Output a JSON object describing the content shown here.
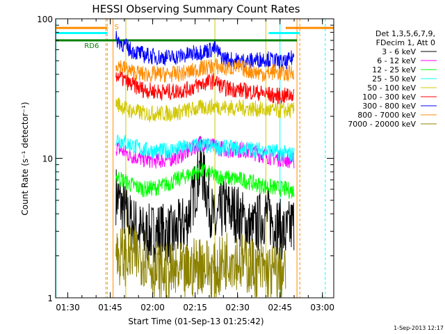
{
  "chart_data": {
    "type": "line",
    "title": "HESSI Observing Summary Count Rates",
    "xlabel": "Start Time (01-Sep-13 01:25:42)",
    "ylabel": "Count Rate (s⁻¹ detector⁻¹)",
    "y_scale": "log",
    "ylim": [
      1,
      100
    ],
    "xlim": [
      "01:25:42",
      "03:04:00"
    ],
    "x_ticks": [
      "01:30",
      "01:45",
      "02:00",
      "02:15",
      "02:30",
      "02:45",
      "03:00"
    ],
    "y_ticks": [
      "1",
      "10",
      "100"
    ],
    "grid": false,
    "legend_position": "right",
    "legend_header": [
      "Det 1,3,5,6,7,9,",
      "FDecim 1, Att 0"
    ],
    "series": [
      {
        "name": "3 - 6 keV",
        "color": "#000000",
        "x": [
          "01:47",
          "01:52",
          "01:57",
          "02:02",
          "02:07",
          "02:12",
          "02:15",
          "02:17",
          "02:19",
          "02:22",
          "02:25",
          "02:30",
          "02:35",
          "02:40",
          "02:43",
          "02:47",
          "02:50"
        ],
        "y": [
          5.5,
          3.5,
          2.8,
          3.0,
          2.8,
          3.5,
          6,
          9,
          6,
          3.2,
          4.5,
          4.0,
          3.0,
          4.0,
          3.5,
          2.8,
          3.5
        ]
      },
      {
        "name": "6 - 12 keV",
        "color": "#ff00ff",
        "x": [
          "01:47",
          "01:52",
          "01:57",
          "02:02",
          "02:07",
          "02:12",
          "02:17",
          "02:22",
          "02:27",
          "02:32",
          "02:37",
          "02:42",
          "02:47",
          "02:50"
        ],
        "y": [
          12,
          10.5,
          9.8,
          9.6,
          10,
          11,
          13,
          12,
          11.5,
          11.5,
          10.8,
          10.2,
          9.8,
          9.6
        ]
      },
      {
        "name": "12 - 25 keV",
        "color": "#00ff00",
        "x": [
          "01:47",
          "01:52",
          "01:57",
          "02:02",
          "02:07",
          "02:12",
          "02:17",
          "02:22",
          "02:27",
          "02:32",
          "02:37",
          "02:42",
          "02:47",
          "02:50"
        ],
        "y": [
          7.5,
          6.5,
          6.0,
          6.2,
          6.8,
          7.5,
          8.2,
          7.5,
          7.2,
          7.0,
          6.5,
          6.2,
          6.0,
          5.8
        ]
      },
      {
        "name": "25 - 50 keV",
        "color": "#00ffff",
        "x": [
          "01:47",
          "01:52",
          "01:57",
          "02:02",
          "02:07",
          "02:12",
          "02:17",
          "02:22",
          "02:27",
          "02:32",
          "02:37",
          "02:42",
          "02:47",
          "02:50"
        ],
        "y": [
          14,
          12.5,
          11.5,
          11.2,
          11.5,
          12,
          12.5,
          12,
          11.8,
          11.8,
          11.5,
          11.2,
          10.8,
          10.6
        ]
      },
      {
        "name": "50 - 100 keV",
        "color": "#d2c800",
        "x": [
          "01:47",
          "01:52",
          "01:57",
          "02:02",
          "02:07",
          "02:12",
          "02:17",
          "02:22",
          "02:27",
          "02:32",
          "02:37",
          "02:42",
          "02:47",
          "02:50"
        ],
        "y": [
          25,
          22,
          21,
          21,
          21,
          22,
          23,
          23.5,
          23,
          23,
          22.5,
          22,
          22,
          22
        ]
      },
      {
        "name": "100 - 300 keV",
        "color": "#ff0000",
        "x": [
          "01:47",
          "01:52",
          "01:57",
          "02:02",
          "02:07",
          "02:12",
          "02:17",
          "02:22",
          "02:25",
          "02:30",
          "02:35",
          "02:40",
          "02:43",
          "02:47",
          "02:50"
        ],
        "y": [
          40,
          34,
          31,
          30,
          30,
          31,
          34,
          36,
          32,
          31,
          30,
          29,
          28,
          28,
          29
        ]
      },
      {
        "name": "300 - 800 keV",
        "color": "#0000ff",
        "x": [
          "01:47",
          "01:52",
          "01:57",
          "02:02",
          "02:07",
          "02:12",
          "02:17",
          "02:22",
          "02:25",
          "02:30",
          "02:35",
          "02:40",
          "02:43",
          "02:47",
          "02:50"
        ],
        "y": [
          72,
          60,
          55,
          53,
          53,
          55,
          58,
          61,
          52,
          50,
          50,
          52,
          50,
          48,
          54
        ]
      },
      {
        "name": "800 - 7000 keV",
        "color": "#ff8c00",
        "x": [
          "01:47",
          "01:52",
          "01:57",
          "02:02",
          "02:07",
          "02:12",
          "02:17",
          "02:22",
          "02:25",
          "02:30",
          "02:35",
          "02:40",
          "02:43",
          "02:47",
          "02:50"
        ],
        "y": [
          48,
          42,
          40,
          40,
          40,
          41,
          44,
          46,
          44,
          45,
          42,
          40,
          42,
          40,
          42
        ]
      },
      {
        "name": "7000 - 20000 keV",
        "color": "#8c8200",
        "x": [
          "01:47",
          "01:52",
          "01:57",
          "02:02",
          "02:07",
          "02:12",
          "02:17",
          "02:22",
          "02:27",
          "02:32",
          "02:37",
          "02:42",
          "02:47"
        ],
        "y": [
          2.0,
          2.0,
          2.0,
          1.5,
          1.5,
          1.5,
          1.8,
          1.5,
          2.0,
          1.8,
          1.6,
          1.5,
          1.5
        ]
      }
    ],
    "annotations": [
      {
        "text": "S",
        "color": "#ff8c00",
        "x": "01:45"
      },
      {
        "text": "RD6",
        "color": "#008000",
        "x": "01:42"
      }
    ],
    "mode_bars": [
      {
        "color": "#ff8c00",
        "y": 86,
        "segments": [
          [
            "01:25:42",
            "01:44"
          ],
          [
            "02:47",
            "03:04"
          ]
        ]
      },
      {
        "color": "#00ffff",
        "y": 79,
        "segments": [
          [
            "01:25:42",
            "01:44"
          ],
          [
            "02:41",
            "02:52"
          ]
        ]
      },
      {
        "color": "#008000",
        "y": 70,
        "segments": [
          [
            "01:25:42",
            "02:51"
          ]
        ]
      }
    ],
    "vertical_markers": [
      {
        "color": "#00ffff",
        "x": "01:25:50",
        "style": "solid"
      },
      {
        "color": "#ff8c00",
        "x": "01:43:30",
        "style": "dashed"
      },
      {
        "color": "#00ffff",
        "x": "01:44:00",
        "style": "dashed"
      },
      {
        "color": "#ff8c00",
        "x": "01:46:00",
        "style": "solid"
      },
      {
        "color": "#d2c800",
        "x": "01:50:30",
        "style": "solid"
      },
      {
        "color": "#d2c800",
        "x": "02:22:00",
        "style": "solid"
      },
      {
        "color": "#d2c800",
        "x": "02:40:00",
        "style": "solid"
      },
      {
        "color": "#00ffff",
        "x": "02:45:00",
        "style": "solid"
      },
      {
        "color": "#ff8c00",
        "x": "02:51:00",
        "style": "solid"
      },
      {
        "color": "#ff8c00",
        "x": "02:52:00",
        "style": "dashed"
      },
      {
        "color": "#00ffff",
        "x": "03:01:00",
        "style": "dashed"
      }
    ]
  },
  "timestamp": "1-Sep-2013 12:17"
}
